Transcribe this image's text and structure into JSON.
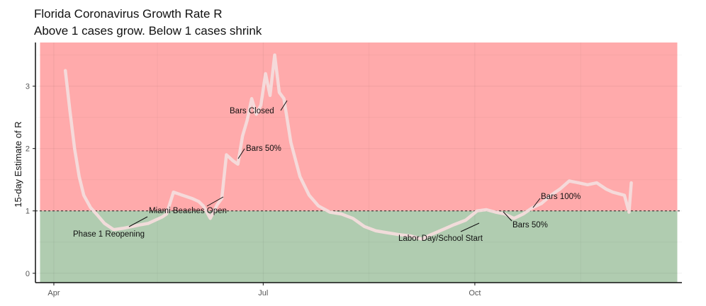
{
  "chart_data": {
    "type": "line",
    "title": "Florida Coronavirus Growth Rate R",
    "subtitle": "Above 1 cases grow. Below 1 cases shrink",
    "ylabel": "15-day Estimate of R",
    "xlabel": "",
    "x_ticks": [
      "Apr",
      "Jul",
      "Oct"
    ],
    "y_ticks": [
      0,
      1,
      2,
      3
    ],
    "ylim": [
      -0.15,
      3.7
    ],
    "xlim": [
      "2020-03-24",
      "2020-12-30"
    ],
    "reference_line": 1,
    "grid": true,
    "regions": [
      {
        "name": "grow",
        "y_from": 1,
        "y_to": 3.7,
        "x_from": "2020-03-26",
        "x_to": "2020-12-28",
        "color": "#ffaaab"
      },
      {
        "name": "shrink",
        "y_from": -0.15,
        "y_to": 1,
        "x_from": "2020-03-26",
        "x_to": "2020-12-28",
        "color": "#b0ccb0"
      }
    ],
    "line_color": "#f4dcdc",
    "series": [
      {
        "x": [
          "2020-04-06",
          "2020-04-08",
          "2020-04-10",
          "2020-04-12",
          "2020-04-14",
          "2020-04-17",
          "2020-04-20",
          "2020-04-23",
          "2020-04-27",
          "2020-05-01",
          "2020-05-05",
          "2020-05-09",
          "2020-05-12",
          "2020-05-15",
          "2020-05-18",
          "2020-05-20",
          "2020-05-23",
          "2020-05-27",
          "2020-05-31",
          "2020-06-03",
          "2020-06-05",
          "2020-06-08",
          "2020-06-11",
          "2020-06-13",
          "2020-06-15",
          "2020-06-18",
          "2020-06-20",
          "2020-06-22",
          "2020-06-24",
          "2020-06-26",
          "2020-06-28",
          "2020-06-30",
          "2020-07-02",
          "2020-07-04",
          "2020-07-06",
          "2020-07-08",
          "2020-07-10",
          "2020-07-13",
          "2020-07-17",
          "2020-07-21",
          "2020-07-25",
          "2020-07-30",
          "2020-08-04",
          "2020-08-09",
          "2020-08-14",
          "2020-08-19",
          "2020-08-24",
          "2020-08-29",
          "2020-09-03",
          "2020-09-08",
          "2020-09-12",
          "2020-09-17",
          "2020-09-22",
          "2020-09-27",
          "2020-10-02",
          "2020-10-06",
          "2020-10-10",
          "2020-10-14",
          "2020-10-18",
          "2020-10-22",
          "2020-10-26",
          "2020-10-30",
          "2020-11-03",
          "2020-11-07",
          "2020-11-11",
          "2020-11-15",
          "2020-11-19",
          "2020-11-23",
          "2020-11-27",
          "2020-11-30",
          "2020-12-02",
          "2020-12-05",
          "2020-12-07",
          "2020-12-08"
        ],
        "y": [
          3.25,
          2.6,
          2.0,
          1.55,
          1.25,
          1.05,
          0.93,
          0.8,
          0.7,
          0.72,
          0.75,
          0.78,
          0.8,
          0.85,
          0.9,
          0.95,
          1.3,
          1.25,
          1.2,
          1.15,
          1.08,
          0.88,
          1.1,
          1.2,
          1.9,
          1.8,
          1.75,
          2.2,
          2.45,
          2.8,
          2.55,
          2.7,
          3.2,
          2.85,
          3.5,
          2.9,
          2.8,
          2.1,
          1.55,
          1.25,
          1.08,
          0.98,
          0.95,
          0.88,
          0.75,
          0.68,
          0.65,
          0.62,
          0.6,
          0.55,
          0.62,
          0.7,
          0.78,
          0.85,
          1.0,
          1.02,
          0.98,
          0.95,
          0.88,
          0.95,
          1.05,
          1.12,
          1.25,
          1.35,
          1.48,
          1.45,
          1.42,
          1.45,
          1.35,
          1.3,
          1.28,
          1.25,
          0.98,
          1.45
        ]
      }
    ],
    "annotations": [
      {
        "text": "Phase 1 Reopening",
        "x": "2020-05-11",
        "y": 0.63
      },
      {
        "text": "Miami Beaches Open",
        "x": "2020-05-27",
        "y": 1.0
      },
      {
        "text": "Bars 50%",
        "x": "2020-06-18",
        "y": 1.98
      },
      {
        "text": "Bars Closed",
        "x": "2020-06-25",
        "y": 2.59
      },
      {
        "text": "Labor Day/School Start",
        "x": "2020-09-05",
        "y": 0.55
      },
      {
        "text": "Bars 50%",
        "x": "2020-09-25",
        "y": 0.81
      },
      {
        "text": "Bars 100%",
        "x": "2020-10-09",
        "y": 1.23
      }
    ]
  }
}
